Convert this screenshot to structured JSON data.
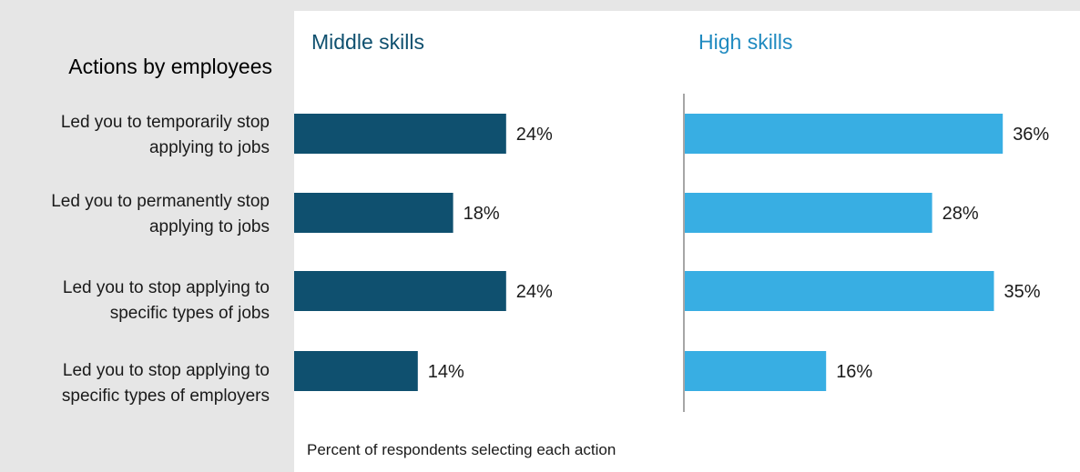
{
  "chart_data": {
    "type": "bar",
    "orientation": "horizontal",
    "title": "Actions by employees",
    "categories": [
      "Led you to temporarily stop applying to jobs",
      "Led you to permanently stop applying to jobs",
      "Led you to stop applying to specific types of jobs",
      "Led you to stop applying to specific types of employers"
    ],
    "category_lines": [
      [
        "Led you to temporarily stop",
        "applying to jobs"
      ],
      [
        "Led you to permanently stop",
        "applying to jobs"
      ],
      [
        "Led you to stop applying to",
        "specific types of jobs"
      ],
      [
        "Led you to stop applying to",
        "specific types of employers"
      ]
    ],
    "series": [
      {
        "name": "Middle skills",
        "values": [
          24,
          18,
          24,
          14
        ],
        "labels": [
          "24%",
          "18%",
          "24%",
          "14%"
        ],
        "color": "#0f506f"
      },
      {
        "name": "High skills",
        "values": [
          36,
          28,
          35,
          16
        ],
        "labels": [
          "36%",
          "28%",
          "35%",
          "16%"
        ],
        "color": "#38aee3"
      }
    ],
    "unit": "%",
    "xlabel": "Percent of respondents selecting each action",
    "ylabel": "",
    "xlim": [
      0,
      40
    ],
    "grid": false,
    "title_colors": {
      "Middle skills": "#0f506f",
      "High skills": "#1f8ac0"
    }
  }
}
